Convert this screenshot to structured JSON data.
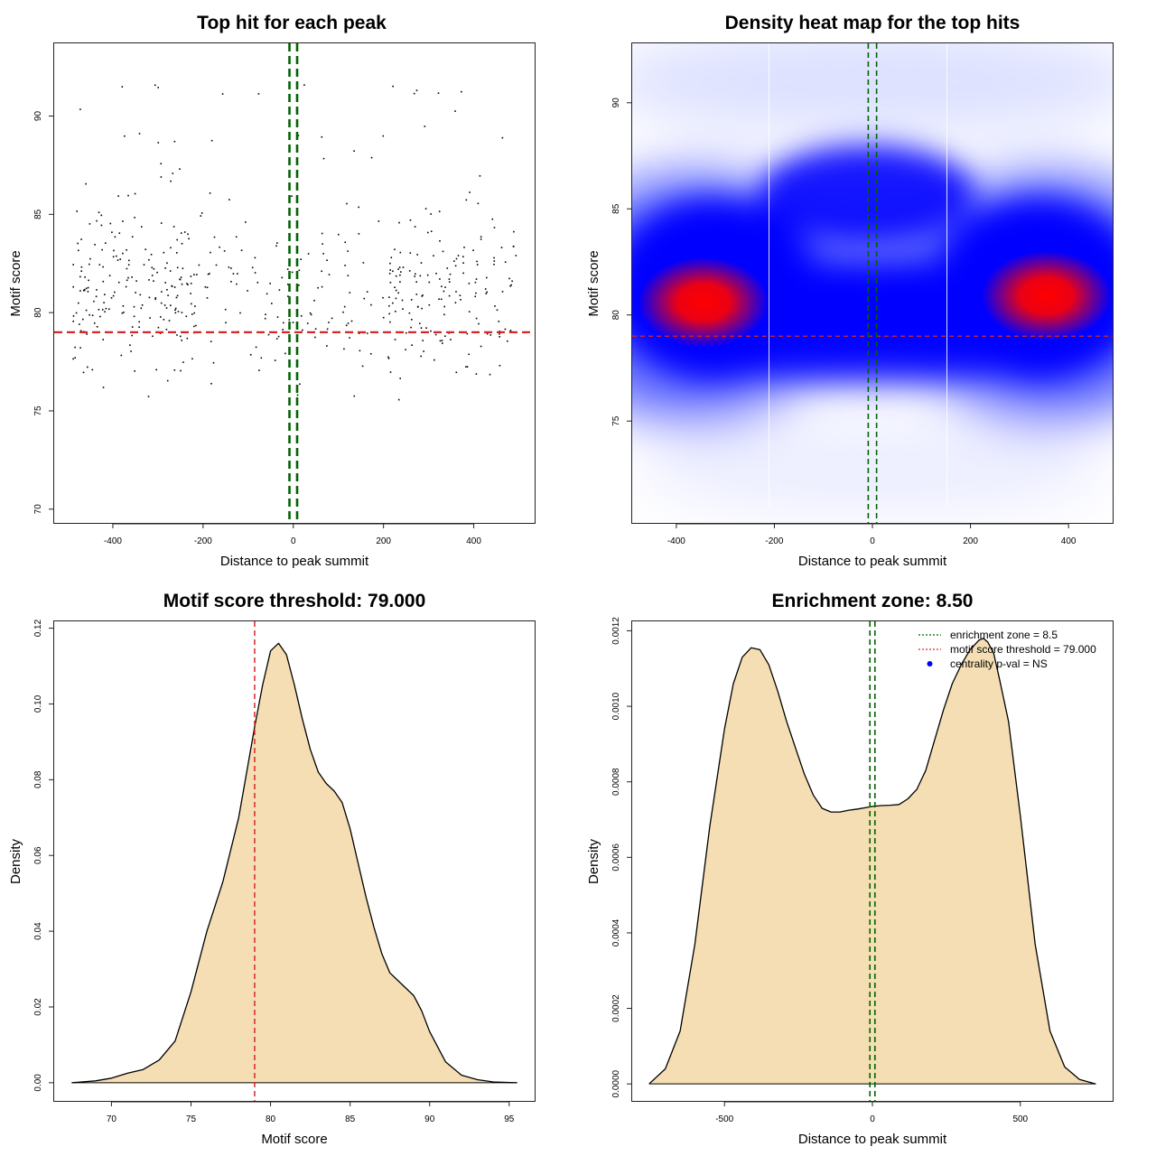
{
  "chart_data": [
    {
      "type": "scatter",
      "title": "Top hit for each peak",
      "xlabel": "Distance to peak summit",
      "ylabel": "Motif score",
      "xlim": [
        -530,
        535
      ],
      "ylim": [
        69.3,
        93.7
      ],
      "xticks": [
        -400,
        -200,
        0,
        200,
        400
      ],
      "yticks": [
        70,
        75,
        80,
        85,
        90
      ],
      "xtick_labels": [
        "-400",
        "-200",
        "0",
        "200",
        "400"
      ],
      "ytick_labels": [
        "70",
        "75",
        "80",
        "85",
        "90"
      ],
      "threshold_y": 79.0,
      "enrichment_zone_x": [
        -8.5,
        8.5
      ],
      "colors": {
        "points": "#000000",
        "threshold": "#d62728",
        "zone": "#006400"
      }
    },
    {
      "type": "heatmap",
      "title": "Density heat map for the top hits",
      "xlabel": "Distance to peak summit",
      "ylabel": "Motif score",
      "xlim": [
        -490,
        490
      ],
      "ylim": [
        70.2,
        92.8
      ],
      "xticks": [
        -400,
        -200,
        0,
        200,
        400
      ],
      "yticks": [
        75,
        80,
        85,
        90
      ],
      "xtick_labels": [
        "-400",
        "-200",
        "0",
        "200",
        "400"
      ],
      "ytick_labels": [
        "75",
        "80",
        "85",
        "90"
      ],
      "threshold_y": 79.0,
      "enrichment_zone_x": [
        -8.5,
        8.5
      ],
      "hotspots": [
        {
          "x": -345,
          "y": 80.6,
          "intensity": 1.0
        },
        {
          "x": 355,
          "y": 80.9,
          "intensity": 1.0
        }
      ],
      "colors": {
        "low": "#ffffff",
        "mid": "#0000ff",
        "high": "#ff0000",
        "threshold": "#d62728",
        "zone": "#006400"
      }
    },
    {
      "type": "area",
      "title": "Motif score threshold: 79.000",
      "xlabel": "Motif score",
      "ylabel": "Density",
      "xlim": [
        66.4,
        96.6
      ],
      "ylim": [
        -0.0048,
        0.1218
      ],
      "xticks": [
        70,
        75,
        80,
        85,
        90,
        95
      ],
      "yticks": [
        0.0,
        0.02,
        0.04,
        0.06,
        0.08,
        0.1,
        0.12
      ],
      "xtick_labels": [
        "70",
        "75",
        "80",
        "85",
        "90",
        "95"
      ],
      "ytick_labels": [
        "0.00",
        "0.02",
        "0.04",
        "0.06",
        "0.08",
        "0.10",
        "0.12"
      ],
      "threshold_x": 79.0,
      "x": [
        67.5,
        69.0,
        70.0,
        71.0,
        72.0,
        73.0,
        74.0,
        75.0,
        75.5,
        76.0,
        77.0,
        78.0,
        79.0,
        79.5,
        80.0,
        80.5,
        81.0,
        81.5,
        82.0,
        82.5,
        83.0,
        83.5,
        84.0,
        84.5,
        85.0,
        85.5,
        86.0,
        86.5,
        87.0,
        87.5,
        88.0,
        88.5,
        89.0,
        89.5,
        90.0,
        91.0,
        92.0,
        93.0,
        94.0,
        95.5
      ],
      "y": [
        0.0,
        0.0005,
        0.0012,
        0.0025,
        0.0035,
        0.006,
        0.011,
        0.024,
        0.032,
        0.04,
        0.053,
        0.07,
        0.094,
        0.105,
        0.114,
        0.116,
        0.113,
        0.105,
        0.096,
        0.088,
        0.082,
        0.079,
        0.077,
        0.074,
        0.067,
        0.058,
        0.049,
        0.041,
        0.034,
        0.029,
        0.027,
        0.025,
        0.023,
        0.019,
        0.0135,
        0.0055,
        0.002,
        0.0008,
        0.0002,
        0.0
      ],
      "colors": {
        "fill": "#f5deb3",
        "line": "#000000",
        "threshold": "#d62728"
      }
    },
    {
      "type": "area",
      "title": "Enrichment zone: 8.50",
      "xlabel": "Distance to peak summit",
      "ylabel": "Density",
      "xlim": [
        -812,
        812
      ],
      "ylim": [
        -4.5e-05,
        0.001225
      ],
      "xticks": [
        -500,
        0,
        500
      ],
      "yticks": [
        0.0,
        0.0002,
        0.0004,
        0.0006,
        0.0008,
        0.001,
        0.0012
      ],
      "xtick_labels": [
        "-500",
        "0",
        "500"
      ],
      "ytick_labels": [
        "0.0000",
        "0.0002",
        "0.0004",
        "0.0006",
        "0.0008",
        "0.0010",
        "0.0012"
      ],
      "enrichment_zone_x": [
        -8.5,
        8.5
      ],
      "x": [
        -755,
        -700,
        -650,
        -600,
        -550,
        -500,
        -470,
        -440,
        -410,
        -380,
        -350,
        -320,
        -290,
        -260,
        -230,
        -200,
        -170,
        -140,
        -110,
        -80,
        -50,
        -20,
        0,
        30,
        60,
        90,
        120,
        150,
        180,
        210,
        240,
        270,
        300,
        330,
        360,
        375,
        390,
        410,
        430,
        460,
        500,
        550,
        600,
        650,
        700,
        755
      ],
      "y": [
        0.0,
        4e-05,
        0.00014,
        0.00037,
        0.00068,
        0.00094,
        0.00106,
        0.00113,
        0.001155,
        0.00115,
        0.00111,
        0.00104,
        0.00096,
        0.00089,
        0.00082,
        0.000765,
        0.00073,
        0.00072,
        0.00072,
        0.000725,
        0.000728,
        0.000732,
        0.000735,
        0.000737,
        0.000738,
        0.00074,
        0.000755,
        0.00078,
        0.00083,
        0.00091,
        0.00099,
        0.00106,
        0.00111,
        0.00115,
        0.001175,
        0.00118,
        0.00117,
        0.00114,
        0.00107,
        0.00096,
        0.00071,
        0.00037,
        0.00014,
        4.5e-05,
        1.2e-05,
        0.0
      ],
      "legend": {
        "position": "top-right",
        "items": [
          {
            "label": "enrichment zone = 8.5",
            "kind": "dotted-line",
            "color": "#006400"
          },
          {
            "label": "motif score threshold = 79.000",
            "kind": "dotted-line",
            "color": "#d62728"
          },
          {
            "label": "centrality p-val = NS",
            "kind": "point",
            "color": "#0000ff"
          }
        ]
      },
      "colors": {
        "fill": "#f5deb3",
        "line": "#000000",
        "zone": "#006400"
      }
    }
  ]
}
